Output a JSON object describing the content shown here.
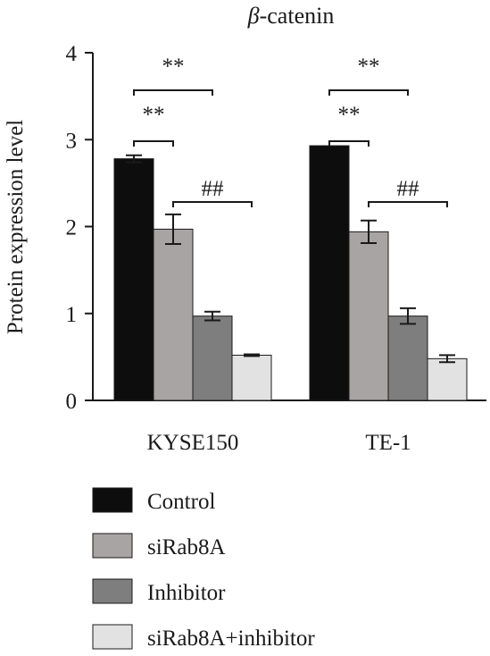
{
  "chart_data": {
    "type": "bar",
    "title": "β-catenin",
    "title_italic_part": "β",
    "title_rest": "-catenin",
    "xlabel": "",
    "ylabel": "Protein expression level",
    "ylim": [
      0,
      4
    ],
    "yticks": [
      "0",
      "1",
      "2",
      "3",
      "4"
    ],
    "categories": [
      "KYSE150",
      "TE-1"
    ],
    "series": [
      {
        "name": "Control",
        "color": "#0d0d0d",
        "values": [
          2.78,
          2.93
        ],
        "errors": [
          0.04,
          0.0
        ]
      },
      {
        "name": "siRab8A",
        "color": "#a9a4a4",
        "values": [
          1.97,
          1.94
        ],
        "errors": [
          0.17,
          0.13
        ]
      },
      {
        "name": "Inhibitor",
        "color": "#7e7e7e",
        "values": [
          0.97,
          0.97
        ],
        "errors": [
          0.05,
          0.09
        ]
      },
      {
        "name": "siRab8A+inhibitor",
        "color": "#e2e2e3",
        "values": [
          0.52,
          0.48
        ],
        "errors": [
          0.01,
          0.04
        ]
      }
    ],
    "significance": [
      {
        "category": 0,
        "from_series": 0,
        "to_series": 1,
        "label": "**"
      },
      {
        "category": 0,
        "from_series": 0,
        "to_series": 2,
        "label": "**"
      },
      {
        "category": 0,
        "from_series": 1,
        "to_series": 3,
        "label": "##"
      },
      {
        "category": 1,
        "from_series": 0,
        "to_series": 1,
        "label": "**"
      },
      {
        "category": 1,
        "from_series": 0,
        "to_series": 2,
        "label": "**"
      },
      {
        "category": 1,
        "from_series": 1,
        "to_series": 3,
        "label": "##"
      }
    ],
    "grid": false,
    "legend_position": "bottom-left"
  }
}
